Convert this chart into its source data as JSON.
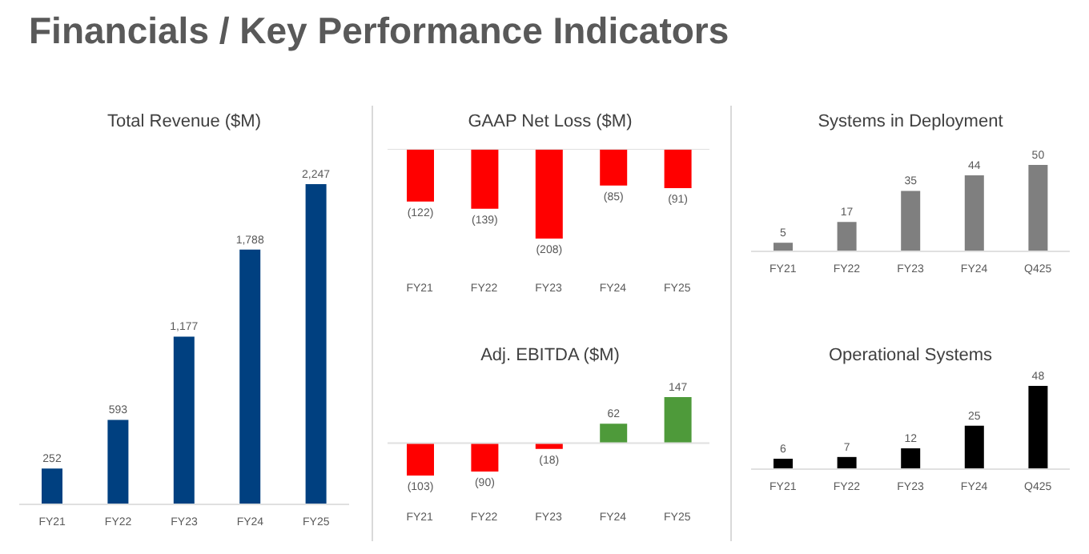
{
  "chart_data": [
    {
      "type": "other",
      "title": "Financials / Key Performance Indicators"
    },
    {
      "type": "bar",
      "title": "Total Revenue ($M)",
      "categories": [
        "FY21",
        "FY22",
        "FY23",
        "FY24",
        "FY25"
      ],
      "values": [
        252,
        593,
        1177,
        1788,
        2247
      ],
      "value_labels": [
        "252",
        "593",
        "1,177",
        "1,788",
        "2,247"
      ],
      "color": "#004080"
    },
    {
      "type": "bar",
      "title": "GAAP Net Loss ($M)",
      "categories": [
        "FY21",
        "FY22",
        "FY23",
        "FY24",
        "FY25"
      ],
      "values": [
        -122,
        -139,
        -208,
        -85,
        -91
      ],
      "value_labels": [
        "(122)",
        "(139)",
        "(208)",
        "(85)",
        "(91)"
      ],
      "color": "#ff0000"
    },
    {
      "type": "bar",
      "title": "Adj. EBITDA ($M)",
      "categories": [
        "FY21",
        "FY22",
        "FY23",
        "FY24",
        "FY25"
      ],
      "values": [
        -103,
        -90,
        -18,
        62,
        147
      ],
      "value_labels": [
        "(103)",
        "(90)",
        "(18)",
        "62",
        "147"
      ],
      "colors": [
        "#ff0000",
        "#ff0000",
        "#ff0000",
        "#4e9a3a",
        "#4e9a3a"
      ]
    },
    {
      "type": "bar",
      "title": "Systems in Deployment",
      "categories": [
        "FY21",
        "FY22",
        "FY23",
        "FY24",
        "Q425"
      ],
      "values": [
        5,
        17,
        35,
        44,
        50
      ],
      "data_labels": true,
      "color": "#7f7f7f"
    },
    {
      "type": "bar",
      "title": "Operational Systems",
      "categories": [
        "FY21",
        "FY22",
        "FY23",
        "FY24",
        "Q425"
      ],
      "values": [
        6,
        7,
        12,
        25,
        48
      ],
      "data_labels": true,
      "color": "#000000"
    }
  ]
}
